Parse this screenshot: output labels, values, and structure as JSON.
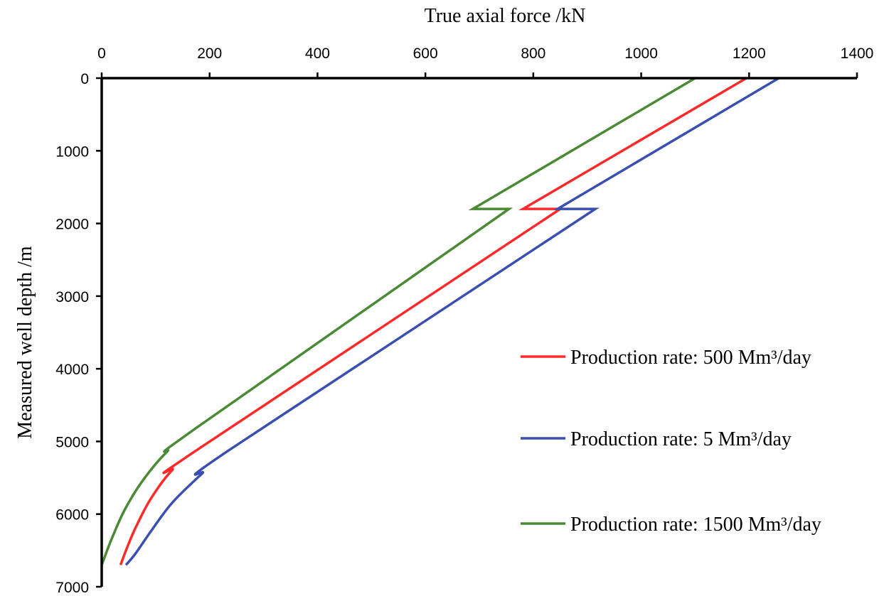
{
  "chart_data": {
    "type": "line",
    "xlabel": "True axial force /kN",
    "ylabel": "Measured well depth /m",
    "xlim": [
      0,
      1400
    ],
    "ylim": [
      0,
      7000
    ],
    "y_inverted": true,
    "x_axis_position": "top",
    "x_ticks": [
      "0",
      "200",
      "400",
      "600",
      "800",
      "1000",
      "1200",
      "1400"
    ],
    "y_ticks": [
      "0",
      "1000",
      "2000",
      "3000",
      "4000",
      "5000",
      "6000",
      "7000"
    ],
    "grid": false,
    "legend_position": "right",
    "series": [
      {
        "name": "Production rate: 500 Mm³/day",
        "color": "#ff2a2a",
        "points": [
          [
            1195,
            0
          ],
          [
            781,
            1800
          ],
          [
            850,
            1800
          ],
          [
            180,
            5100
          ],
          [
            130,
            5400
          ],
          [
            90,
            5800
          ],
          [
            62,
            6200
          ],
          [
            45,
            6500
          ],
          [
            35,
            6700
          ]
        ]
      },
      {
        "name": "Production rate: 5 Mm³/day",
        "color": "#3a4fb0",
        "points": [
          [
            1255,
            0
          ],
          [
            845,
            1800
          ],
          [
            915,
            1800
          ],
          [
            240,
            5100
          ],
          [
            185,
            5450
          ],
          [
            130,
            5850
          ],
          [
            90,
            6250
          ],
          [
            62,
            6550
          ],
          [
            45,
            6700
          ]
        ]
      },
      {
        "name": "Production rate: 1500 Mm³/day",
        "color": "#4b8a35",
        "points": [
          [
            1100,
            0
          ],
          [
            688,
            1800
          ],
          [
            755,
            1800
          ],
          [
            178,
            4800
          ],
          [
            120,
            5150
          ],
          [
            75,
            5550
          ],
          [
            42,
            5950
          ],
          [
            18,
            6350
          ],
          [
            5,
            6600
          ],
          [
            0,
            6700
          ]
        ]
      }
    ]
  }
}
